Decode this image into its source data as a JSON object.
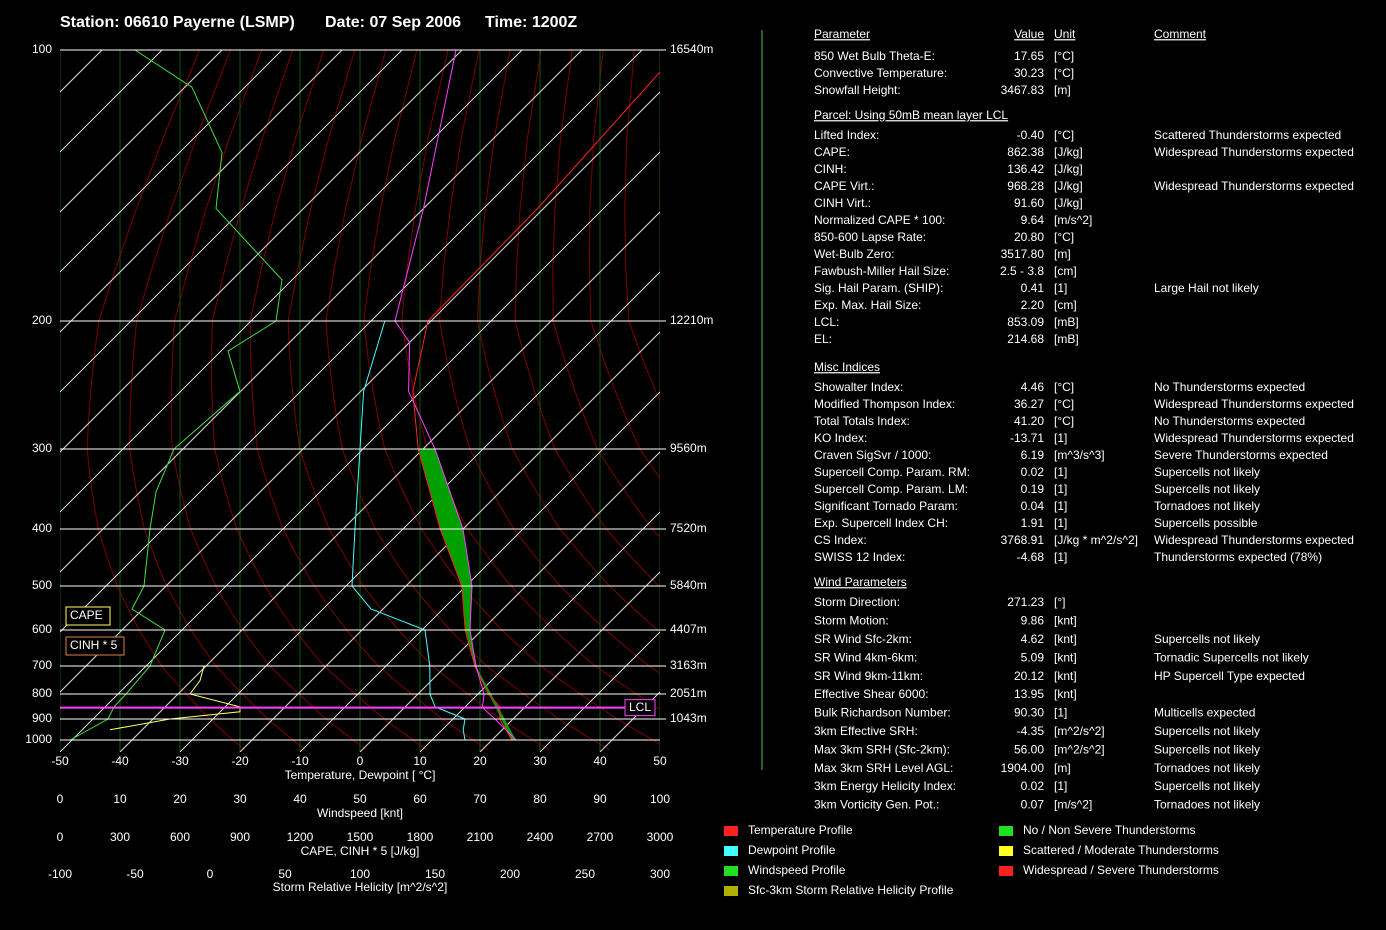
{
  "header": {
    "station": "Station: 06610 Payerne (LSMP)",
    "date": "Date: 07 Sep 2006",
    "time": "Time: 1200Z"
  },
  "chart_data": {
    "type": "skewt",
    "pressure_ticks": [
      100,
      200,
      300,
      400,
      500,
      600,
      700,
      800,
      900,
      1000
    ],
    "height_labels": [
      {
        "value": 100,
        "label": "16540m"
      },
      {
        "value": 200,
        "label": "12210m"
      },
      {
        "value": 300,
        "label": "9560m"
      },
      {
        "value": 400,
        "label": "7520m"
      },
      {
        "value": 500,
        "label": "5840m"
      },
      {
        "value": 600,
        "label": "4407m"
      },
      {
        "value": 700,
        "label": "3163m"
      },
      {
        "value": 800,
        "label": "2051m"
      },
      {
        "value": 900,
        "label": "1043m"
      }
    ],
    "xlim": [
      -50,
      50
    ],
    "xticks": [
      -50,
      -40,
      -30,
      -20,
      -10,
      0,
      10,
      20,
      30,
      40,
      50
    ],
    "xlabel": "Temperature, Dewpoint [ °C]",
    "wind_xlim": [
      0,
      100
    ],
    "wind_xticks": [
      0,
      10,
      20,
      30,
      40,
      50,
      60,
      70,
      80,
      90,
      100
    ],
    "wind_xlabel": "Windspeed [knt]",
    "cape_xlim": [
      0,
      3000
    ],
    "cape_xticks": [
      0,
      300,
      600,
      900,
      1200,
      1500,
      1800,
      2100,
      2400,
      2700,
      3000
    ],
    "cape_xlabel": "CAPE, CINH * 5 [J/kg]",
    "srh_xlim": [
      -100,
      300
    ],
    "srh_xticks": [
      -100,
      -50,
      0,
      50,
      100,
      150,
      200,
      250,
      300
    ],
    "srh_xlabel": "Storm Relative Helicity [m^2/s^2]",
    "lcl": {
      "value": 853.09,
      "label": "LCL",
      "color": "#ff40ff"
    },
    "annotations": [
      {
        "label": "CAPE",
        "color": "#ffff60"
      },
      {
        "label": "CINH * 5",
        "color": "#e08040"
      }
    ],
    "series": [
      {
        "color": "#ff2020",
        "axis": "temperature",
        "pressure": [
          1000,
          900,
          850,
          800,
          700,
          600,
          500,
          400,
          300,
          250,
          200,
          150,
          100
        ],
        "values": [
          23.3,
          17.8,
          15.8,
          11.7,
          4.8,
          -2.8,
          -10.7,
          -23.8,
          -40.8,
          -51.3,
          -60.5,
          -61,
          -63.7
        ]
      },
      {
        "color": "#40ffff",
        "axis": "temperature",
        "pressure": [
          1000,
          950,
          900,
          850,
          800,
          700,
          600,
          550,
          500,
          400,
          300,
          250,
          200
        ],
        "values": [
          15.5,
          13.5,
          12,
          5,
          2,
          -2.7,
          -9.5,
          -22,
          -29,
          -38,
          -50.5,
          -59.5,
          -67.7
        ]
      },
      {
        "color": "#ff40ff",
        "axis": "temperature",
        "pressure": [
          1000,
          900,
          853,
          800,
          700,
          600,
          500,
          400,
          300,
          250,
          214,
          200,
          150,
          100
        ],
        "values": [
          24,
          17,
          13,
          11,
          5,
          -2,
          -9,
          -20,
          -38,
          -52,
          -60,
          -66,
          -80,
          -101
        ]
      },
      {
        "color": "#40e040",
        "axis": "wind",
        "pressure": [
          1000,
          900,
          850,
          800,
          700,
          600,
          550,
          500,
          400,
          350,
          300,
          250,
          220,
          200,
          180,
          150,
          130,
          110,
          100
        ],
        "values": [
          1.7,
          8,
          9,
          11,
          15,
          17.5,
          12,
          14,
          15,
          16,
          19,
          30,
          28,
          36,
          37,
          26,
          27,
          22,
          12.5
        ]
      },
      {
        "color": "#ffff60",
        "axis": "cape",
        "pressure": [
          950,
          900,
          870,
          850,
          800,
          750,
          700
        ],
        "values": [
          250,
          550,
          900,
          900,
          650,
          700,
          720
        ]
      }
    ]
  },
  "table": {
    "columns": [
      "Parameter",
      "Value",
      "Unit",
      "Comment"
    ],
    "sections": [
      {
        "rows": [
          {
            "parameter": "850 Wet Bulb Theta-E:",
            "value": "17.65",
            "unit": "[°C]",
            "color": "#ff3030"
          },
          {
            "parameter": "Convective Temperature:",
            "value": "30.23",
            "unit": "[°C]",
            "color": "#ff3030"
          },
          {
            "parameter": "Snowfall Height:",
            "value": "3467.83",
            "unit": "[m]",
            "color": "#ffffff"
          }
        ]
      },
      {
        "title": "Parcel: Using 50mB mean layer LCL",
        "rows": [
          {
            "parameter": "Lifted Index:",
            "value": "-0.40",
            "unit": "[°C]",
            "comment": "Scattered Thunderstorms expected",
            "color": "#ffff40"
          },
          {
            "parameter": "CAPE:",
            "value": "862.38",
            "unit": "[J/kg]",
            "comment": "Widespread Thunderstorms expected",
            "color": "#ff3030"
          },
          {
            "parameter": "CINH:",
            "value": "136.42",
            "unit": "[J/kg]",
            "color": "#ffffff"
          },
          {
            "parameter": "CAPE Virt.:",
            "value": "968.28",
            "unit": "[J/kg]",
            "comment": "Widespread Thunderstorms expected",
            "color": "#ff3030"
          },
          {
            "parameter": "CINH Virt.:",
            "value": "91.60",
            "unit": "[J/kg]",
            "color": "#ffffff"
          },
          {
            "parameter": "Normalized CAPE * 100:",
            "value": "9.64",
            "unit": "[m/s^2]",
            "color": "#ffff40"
          },
          {
            "parameter": "850-600 Lapse Rate:",
            "value": "20.80",
            "unit": "[°C]",
            "color": "#ff3030"
          },
          {
            "parameter": "Wet-Bulb Zero:",
            "value": "3517.80",
            "unit": "[m]",
            "color": "#ffff40"
          },
          {
            "parameter": "Fawbush-Miller Hail Size:",
            "value": "2.5 - 3.8",
            "unit": "[cm]",
            "color": "#ff3030"
          },
          {
            "parameter": "Sig. Hail Param. (SHIP):",
            "value": "0.41",
            "unit": "[1]",
            "comment": "Large Hail not likely",
            "color": "#40ff40"
          },
          {
            "parameter": "Exp. Max. Hail Size:",
            "value": "2.20",
            "unit": "[cm]",
            "color": "#ffff40"
          },
          {
            "parameter": "LCL:",
            "value": "853.09",
            "unit": "[mB]",
            "color": "#ffffff"
          },
          {
            "parameter": "EL:",
            "value": "214.68",
            "unit": "[mB]",
            "color": "#ff3030"
          }
        ]
      },
      {
        "title": "Misc Indices",
        "rows": [
          {
            "parameter": "Showalter Index:",
            "value": "4.46",
            "unit": "[°C]",
            "comment": "No Thunderstorms expected",
            "color": "#40ff40"
          },
          {
            "parameter": "Modified Thompson Index:",
            "value": "36.27",
            "unit": "[°C]",
            "comment": "Widespread Thunderstorms expected",
            "color": "#ff3030"
          },
          {
            "parameter": "Total Totals Index:",
            "value": "41.20",
            "unit": "[°C]",
            "comment": "No Thunderstorms expected",
            "color": "#40ff40"
          },
          {
            "parameter": "KO Index:",
            "value": "-13.71",
            "unit": "[1]",
            "comment": "Widespread Thunderstorms expected",
            "color": "#ff3030"
          },
          {
            "parameter": "Craven SigSvr / 1000:",
            "value": "6.19",
            "unit": "[m^3/s^3]",
            "comment": "Severe Thunderstorms expected",
            "color": "#ff3030"
          },
          {
            "parameter": "Supercell Comp. Param. RM:",
            "value": "0.02",
            "unit": "[1]",
            "comment": "Supercells not likely",
            "color": "#40ff40"
          },
          {
            "parameter": "Supercell Comp. Param. LM:",
            "value": "0.19",
            "unit": "[1]",
            "comment": "Supercells not likely",
            "color": "#40ff40"
          },
          {
            "parameter": "Significant Tornado Param:",
            "value": "0.04",
            "unit": "[1]",
            "comment": "Tornadoes not likely",
            "color": "#40ff40"
          },
          {
            "parameter": "Exp. Supercell Index CH:",
            "value": "1.91",
            "unit": "[1]",
            "comment": "Supercells possible",
            "color": "#ffff40"
          },
          {
            "parameter": "CS Index:",
            "value": "3768.91",
            "unit": "[J/kg * m^2/s^2]",
            "comment": "Widespread Thunderstorms expected",
            "color": "#ff3030"
          },
          {
            "parameter": "SWISS 12 Index:",
            "value": "-4.68",
            "unit": "[1]",
            "comment": "Thunderstorms expected (78%)",
            "color": "#ff3030"
          }
        ]
      },
      {
        "title": "Wind Parameters",
        "rows": [
          {
            "parameter": "Storm Direction:",
            "value": "271.23",
            "unit": "[°]",
            "color": "#ffffff"
          },
          {
            "parameter": "Storm Motion:",
            "value": "9.86",
            "unit": "[knt]",
            "color": "#40ff40"
          },
          {
            "parameter": "SR Wind Sfc-2km:",
            "value": "4.62",
            "unit": "[knt]",
            "comment": "Supercells not likely",
            "color": "#40ff40"
          },
          {
            "parameter": "SR Wind 4km-6km:",
            "value": "5.09",
            "unit": "[knt]",
            "comment": "Tornadic Supercells not likely",
            "color": "#40ff40"
          },
          {
            "parameter": "SR Wind 9km-11km:",
            "value": "20.12",
            "unit": "[knt]",
            "comment": "HP Supercell Type expected",
            "color": "#ff3030"
          },
          {
            "parameter": "Effective Shear 6000:",
            "value": "13.95",
            "unit": "[knt]",
            "color": "#40ff40"
          },
          {
            "parameter": "Bulk Richardson Number:",
            "value": "90.30",
            "unit": "[1]",
            "comment": "Multicells expected",
            "color": "#ffff40"
          },
          {
            "parameter": "3km Effective SRH:",
            "value": "-4.35",
            "unit": "[m^2/s^2]",
            "comment": "Supercells not likely",
            "color": "#40ff40"
          },
          {
            "parameter": "Max 3km SRH (Sfc-2km):",
            "value": "56.00",
            "unit": "[m^2/s^2]",
            "comment": "Supercells not likely",
            "color": "#40ff40"
          },
          {
            "parameter": "Max 3km SRH Level AGL:",
            "value": "1904.00",
            "unit": "[m]",
            "comment": "Tornadoes not likely",
            "color": "#40ff40"
          },
          {
            "parameter": "3km Energy Helicity Index:",
            "value": "0.02",
            "unit": "[1]",
            "comment": "Supercells not likely",
            "color": "#40ff40"
          },
          {
            "parameter": "3km Vorticity Gen. Pot.:",
            "value": "0.07",
            "unit": "[m/s^2]",
            "comment": "Tornadoes not likely",
            "color": "#40ff40"
          }
        ]
      }
    ]
  },
  "legend": {
    "profiles": [
      {
        "label": "Temperature Profile",
        "color": "#ff2020"
      },
      {
        "label": "Dewpoint Profile",
        "color": "#40ffff"
      },
      {
        "label": "Windspeed Profile",
        "color": "#20e020"
      },
      {
        "label": "Sfc-3km Storm Relative Helicity Profile",
        "color": "#b0b000"
      }
    ],
    "threats": [
      {
        "label": "No / Non Severe Thunderstorms",
        "color": "#20e020"
      },
      {
        "label": "Scattered / Moderate Thunderstorms",
        "color": "#ffff20"
      },
      {
        "label": "Widespread / Severe Thunderstorms",
        "color": "#ff2020"
      }
    ]
  }
}
